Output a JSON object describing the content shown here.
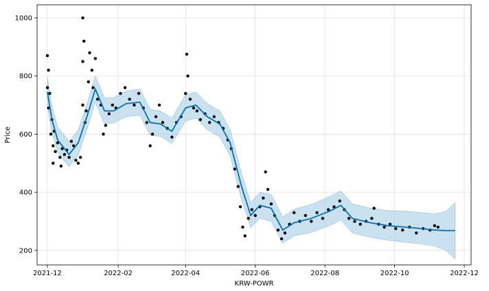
{
  "chart_data": {
    "type": "scatter",
    "title": "",
    "xlabel": "KRW-POWR",
    "ylabel": "Price",
    "x_ticks": [
      "2021-12",
      "2022-02",
      "2022-04",
      "2022-06",
      "2022-08",
      "2022-10",
      "2022-12"
    ],
    "y_ticks": [
      200,
      400,
      600,
      800,
      1000
    ],
    "xlim": [
      "2021-11-22",
      "2022-12-07"
    ],
    "ylim": [
      150,
      1045
    ],
    "grid": true,
    "colors": {
      "observed": "#000000",
      "forecast": "#0072B2",
      "interval": "#9ecae1"
    },
    "forecast": [
      {
        "date": "2021-12-01",
        "yhat": 745,
        "lower": 700,
        "upper": 795
      },
      {
        "date": "2021-12-05",
        "yhat": 650,
        "lower": 605,
        "upper": 695
      },
      {
        "date": "2021-12-10",
        "yhat": 580,
        "lower": 538,
        "upper": 625
      },
      {
        "date": "2021-12-15",
        "yhat": 555,
        "lower": 510,
        "upper": 600
      },
      {
        "date": "2021-12-20",
        "yhat": 530,
        "lower": 488,
        "upper": 575
      },
      {
        "date": "2021-12-28",
        "yhat": 570,
        "lower": 528,
        "upper": 615
      },
      {
        "date": "2022-01-05",
        "yhat": 665,
        "lower": 620,
        "upper": 708
      },
      {
        "date": "2022-01-12",
        "yhat": 755,
        "lower": 710,
        "upper": 800
      },
      {
        "date": "2022-01-20",
        "yhat": 680,
        "lower": 635,
        "upper": 725
      },
      {
        "date": "2022-01-28",
        "yhat": 680,
        "lower": 638,
        "upper": 725
      },
      {
        "date": "2022-02-08",
        "yhat": 705,
        "lower": 660,
        "upper": 748
      },
      {
        "date": "2022-02-20",
        "yhat": 710,
        "lower": 665,
        "upper": 755
      },
      {
        "date": "2022-03-01",
        "yhat": 640,
        "lower": 596,
        "upper": 685
      },
      {
        "date": "2022-03-10",
        "yhat": 635,
        "lower": 592,
        "upper": 680
      },
      {
        "date": "2022-03-20",
        "yhat": 610,
        "lower": 568,
        "upper": 655
      },
      {
        "date": "2022-04-01",
        "yhat": 690,
        "lower": 645,
        "upper": 735
      },
      {
        "date": "2022-04-10",
        "yhat": 700,
        "lower": 655,
        "upper": 745
      },
      {
        "date": "2022-04-20",
        "yhat": 660,
        "lower": 615,
        "upper": 705
      },
      {
        "date": "2022-05-01",
        "yhat": 635,
        "lower": 590,
        "upper": 680
      },
      {
        "date": "2022-05-10",
        "yhat": 570,
        "lower": 525,
        "upper": 615
      },
      {
        "date": "2022-05-20",
        "yhat": 420,
        "lower": 375,
        "upper": 465
      },
      {
        "date": "2022-05-28",
        "yhat": 320,
        "lower": 278,
        "upper": 365
      },
      {
        "date": "2022-06-05",
        "yhat": 355,
        "lower": 310,
        "upper": 400
      },
      {
        "date": "2022-06-15",
        "yhat": 345,
        "lower": 300,
        "upper": 392
      },
      {
        "date": "2022-06-25",
        "yhat": 270,
        "lower": 225,
        "upper": 315
      },
      {
        "date": "2022-07-05",
        "yhat": 295,
        "lower": 250,
        "upper": 342
      },
      {
        "date": "2022-07-20",
        "yhat": 310,
        "lower": 262,
        "upper": 358
      },
      {
        "date": "2022-08-05",
        "yhat": 335,
        "lower": 285,
        "upper": 385
      },
      {
        "date": "2022-08-15",
        "yhat": 355,
        "lower": 305,
        "upper": 405
      },
      {
        "date": "2022-08-25",
        "yhat": 310,
        "lower": 260,
        "upper": 360
      },
      {
        "date": "2022-09-10",
        "yhat": 295,
        "lower": 245,
        "upper": 345
      },
      {
        "date": "2022-09-25",
        "yhat": 285,
        "lower": 235,
        "upper": 337
      },
      {
        "date": "2022-10-10",
        "yhat": 280,
        "lower": 228,
        "upper": 335
      },
      {
        "date": "2022-10-25",
        "yhat": 275,
        "lower": 222,
        "upper": 330
      },
      {
        "date": "2022-11-05",
        "yhat": 270,
        "lower": 215,
        "upper": 325
      },
      {
        "date": "2022-11-15",
        "yhat": 268,
        "lower": 200,
        "upper": 335
      },
      {
        "date": "2022-11-23",
        "yhat": 268,
        "lower": 170,
        "upper": 365
      }
    ],
    "observed": [
      {
        "date": "2021-12-01",
        "y": 760
      },
      {
        "date": "2021-12-01",
        "y": 870
      },
      {
        "date": "2021-12-02",
        "y": 820
      },
      {
        "date": "2021-12-02",
        "y": 690
      },
      {
        "date": "2021-12-03",
        "y": 740
      },
      {
        "date": "2021-12-04",
        "y": 600
      },
      {
        "date": "2021-12-05",
        "y": 650
      },
      {
        "date": "2021-12-06",
        "y": 500
      },
      {
        "date": "2021-12-06",
        "y": 560
      },
      {
        "date": "2021-12-07",
        "y": 610
      },
      {
        "date": "2021-12-08",
        "y": 540
      },
      {
        "date": "2021-12-10",
        "y": 570
      },
      {
        "date": "2021-12-12",
        "y": 520
      },
      {
        "date": "2021-12-13",
        "y": 490
      },
      {
        "date": "2021-12-14",
        "y": 550
      },
      {
        "date": "2021-12-16",
        "y": 530
      },
      {
        "date": "2021-12-18",
        "y": 545
      },
      {
        "date": "2021-12-20",
        "y": 520
      },
      {
        "date": "2021-12-22",
        "y": 575
      },
      {
        "date": "2021-12-24",
        "y": 560
      },
      {
        "date": "2021-12-26",
        "y": 510
      },
      {
        "date": "2021-12-28",
        "y": 500
      },
      {
        "date": "2021-12-30",
        "y": 520
      },
      {
        "date": "2022-01-01",
        "y": 700
      },
      {
        "date": "2022-01-01",
        "y": 850
      },
      {
        "date": "2022-01-01",
        "y": 1000
      },
      {
        "date": "2022-01-02",
        "y": 920
      },
      {
        "date": "2022-01-03",
        "y": 640
      },
      {
        "date": "2022-01-04",
        "y": 680
      },
      {
        "date": "2022-01-06",
        "y": 780
      },
      {
        "date": "2022-01-07",
        "y": 880
      },
      {
        "date": "2022-01-09",
        "y": 820
      },
      {
        "date": "2022-01-10",
        "y": 760
      },
      {
        "date": "2022-01-12",
        "y": 860
      },
      {
        "date": "2022-01-14",
        "y": 720
      },
      {
        "date": "2022-01-17",
        "y": 700
      },
      {
        "date": "2022-01-19",
        "y": 600
      },
      {
        "date": "2022-01-21",
        "y": 630
      },
      {
        "date": "2022-01-24",
        "y": 670
      },
      {
        "date": "2022-01-27",
        "y": 700
      },
      {
        "date": "2022-01-30",
        "y": 690
      },
      {
        "date": "2022-02-03",
        "y": 740
      },
      {
        "date": "2022-02-07",
        "y": 760
      },
      {
        "date": "2022-02-11",
        "y": 720
      },
      {
        "date": "2022-02-15",
        "y": 700
      },
      {
        "date": "2022-02-19",
        "y": 740
      },
      {
        "date": "2022-02-23",
        "y": 690
      },
      {
        "date": "2022-02-26",
        "y": 640
      },
      {
        "date": "2022-03-01",
        "y": 560
      },
      {
        "date": "2022-03-03",
        "y": 600
      },
      {
        "date": "2022-03-06",
        "y": 660
      },
      {
        "date": "2022-03-09",
        "y": 700
      },
      {
        "date": "2022-03-12",
        "y": 640
      },
      {
        "date": "2022-03-16",
        "y": 620
      },
      {
        "date": "2022-03-20",
        "y": 590
      },
      {
        "date": "2022-03-24",
        "y": 640
      },
      {
        "date": "2022-03-28",
        "y": 660
      },
      {
        "date": "2022-04-01",
        "y": 740
      },
      {
        "date": "2022-04-02",
        "y": 875
      },
      {
        "date": "2022-04-03",
        "y": 800
      },
      {
        "date": "2022-04-05",
        "y": 720
      },
      {
        "date": "2022-04-08",
        "y": 690
      },
      {
        "date": "2022-04-11",
        "y": 680
      },
      {
        "date": "2022-04-14",
        "y": 650
      },
      {
        "date": "2022-04-18",
        "y": 670
      },
      {
        "date": "2022-04-22",
        "y": 640
      },
      {
        "date": "2022-04-26",
        "y": 660
      },
      {
        "date": "2022-04-30",
        "y": 640
      },
      {
        "date": "2022-05-04",
        "y": 620
      },
      {
        "date": "2022-05-08",
        "y": 580
      },
      {
        "date": "2022-05-11",
        "y": 550
      },
      {
        "date": "2022-05-14",
        "y": 480
      },
      {
        "date": "2022-05-17",
        "y": 420
      },
      {
        "date": "2022-05-19",
        "y": 350
      },
      {
        "date": "2022-05-21",
        "y": 280
      },
      {
        "date": "2022-05-23",
        "y": 250
      },
      {
        "date": "2022-05-26",
        "y": 310
      },
      {
        "date": "2022-05-29",
        "y": 340
      },
      {
        "date": "2022-06-01",
        "y": 320
      },
      {
        "date": "2022-06-05",
        "y": 350
      },
      {
        "date": "2022-06-08",
        "y": 380
      },
      {
        "date": "2022-06-10",
        "y": 470
      },
      {
        "date": "2022-06-12",
        "y": 410
      },
      {
        "date": "2022-06-15",
        "y": 360
      },
      {
        "date": "2022-06-18",
        "y": 320
      },
      {
        "date": "2022-06-21",
        "y": 270
      },
      {
        "date": "2022-06-24",
        "y": 240
      },
      {
        "date": "2022-06-27",
        "y": 260
      },
      {
        "date": "2022-07-01",
        "y": 290
      },
      {
        "date": "2022-07-05",
        "y": 330
      },
      {
        "date": "2022-07-10",
        "y": 300
      },
      {
        "date": "2022-07-15",
        "y": 320
      },
      {
        "date": "2022-07-20",
        "y": 300
      },
      {
        "date": "2022-07-25",
        "y": 330
      },
      {
        "date": "2022-07-30",
        "y": 310
      },
      {
        "date": "2022-08-04",
        "y": 340
      },
      {
        "date": "2022-08-09",
        "y": 350
      },
      {
        "date": "2022-08-14",
        "y": 370
      },
      {
        "date": "2022-08-18",
        "y": 340
      },
      {
        "date": "2022-08-22",
        "y": 310
      },
      {
        "date": "2022-08-27",
        "y": 300
      },
      {
        "date": "2022-09-01",
        "y": 290
      },
      {
        "date": "2022-09-06",
        "y": 300
      },
      {
        "date": "2022-09-11",
        "y": 310
      },
      {
        "date": "2022-09-13",
        "y": 345
      },
      {
        "date": "2022-09-17",
        "y": 290
      },
      {
        "date": "2022-09-22",
        "y": 280
      },
      {
        "date": "2022-09-27",
        "y": 290
      },
      {
        "date": "2022-10-02",
        "y": 275
      },
      {
        "date": "2022-10-08",
        "y": 270
      },
      {
        "date": "2022-10-14",
        "y": 280
      },
      {
        "date": "2022-10-20",
        "y": 260
      },
      {
        "date": "2022-10-26",
        "y": 275
      },
      {
        "date": "2022-11-01",
        "y": 270
      },
      {
        "date": "2022-11-05",
        "y": 285
      },
      {
        "date": "2022-11-08",
        "y": 280
      }
    ]
  }
}
